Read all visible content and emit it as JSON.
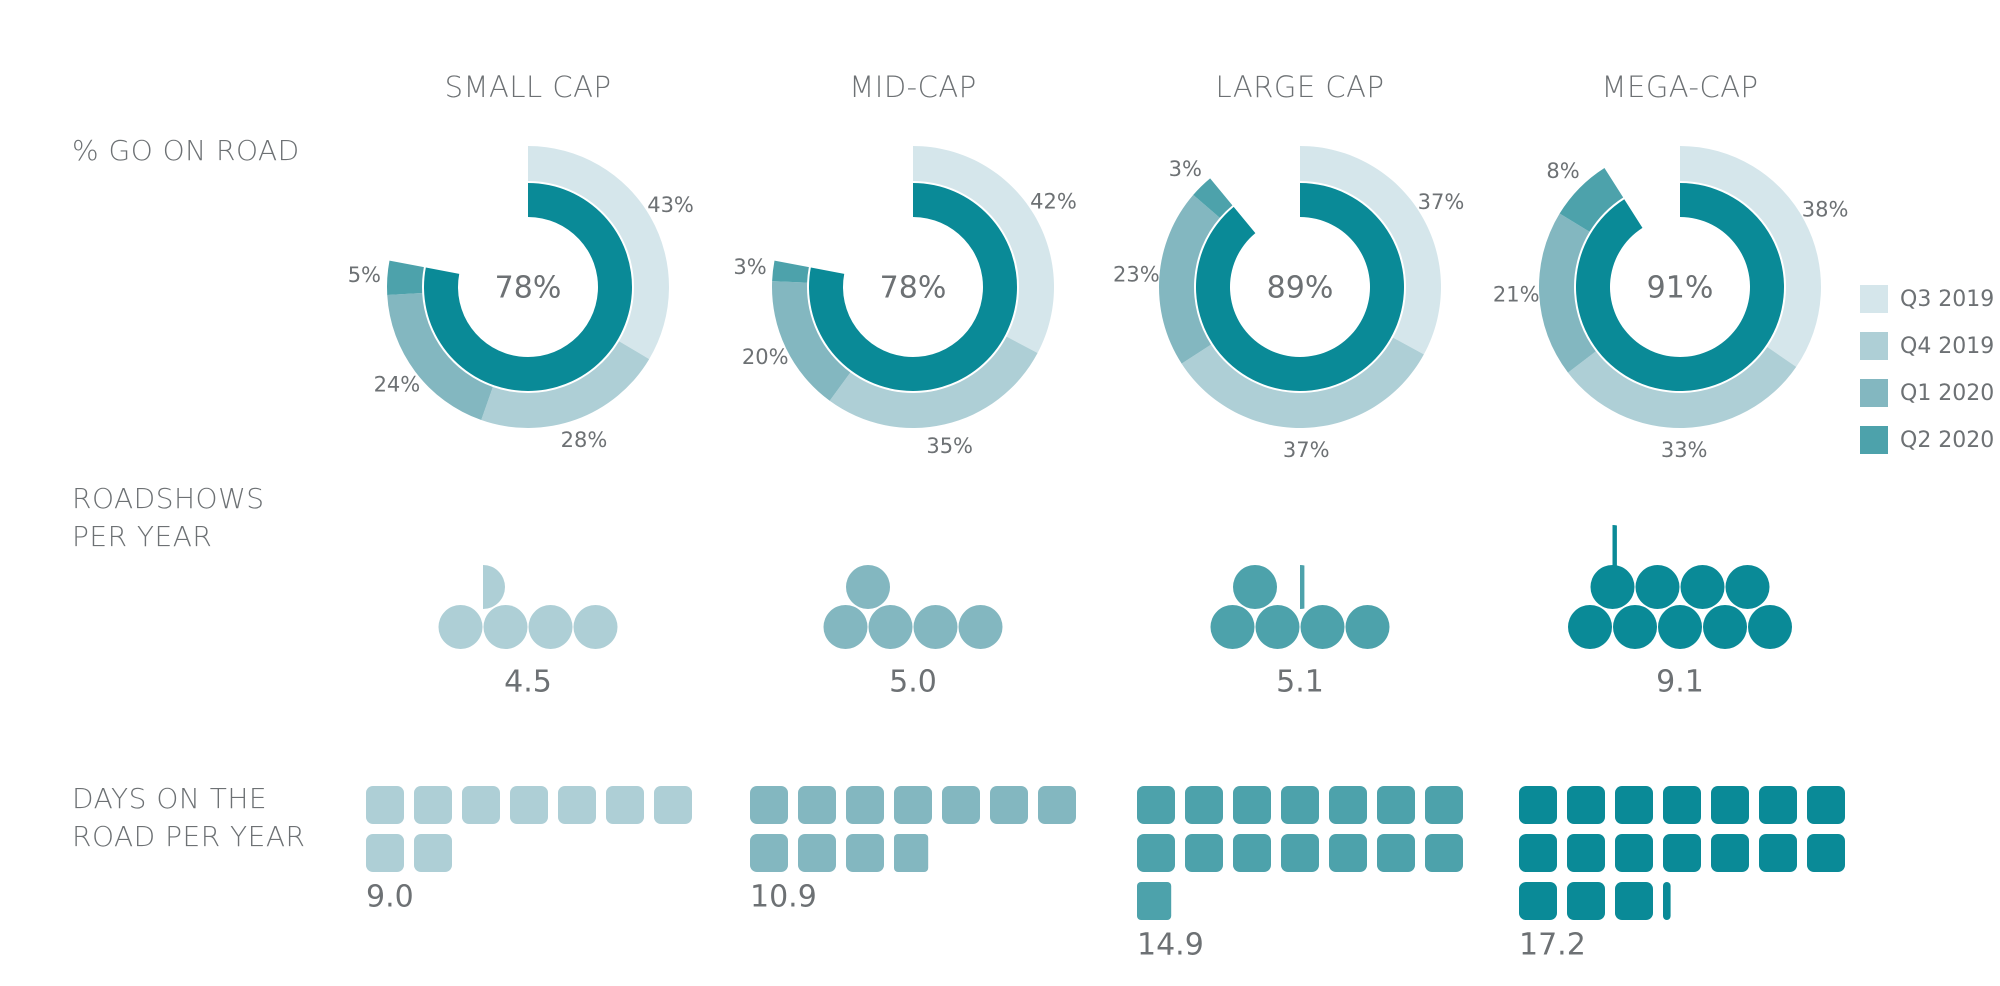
{
  "colors": {
    "q3_2019": "#d5e6eb",
    "q4_2019": "#aecfd6",
    "q1_2020": "#83b7c0",
    "q2_2020": "#4da2ab",
    "dark": "#0a8a97",
    "text": "#6d7174"
  },
  "row_labels": {
    "go_on_road": "% GO ON ROAD",
    "roadshows": "ROADSHOWS\nPER YEAR",
    "days": "DAYS ON THE\nROAD PER YEAR"
  },
  "legend": [
    {
      "label": "Q3 2019",
      "color": "#d5e6eb"
    },
    {
      "label": "Q4 2019",
      "color": "#aecfd6"
    },
    {
      "label": "Q1 2020",
      "color": "#83b7c0"
    },
    {
      "label": "Q2 2020",
      "color": "#4da2ab"
    }
  ],
  "chart_data": [
    {
      "type": "donut",
      "title": "% GO ON ROAD",
      "categories": [
        "SMALL CAP",
        "MID-CAP",
        "LARGE CAP",
        "MEGA-CAP"
      ],
      "total_values": [
        78,
        78,
        89,
        91
      ],
      "total_labels": [
        "78%",
        "78%",
        "89%",
        "91%"
      ],
      "series": [
        {
          "name": "Q3 2019",
          "values": [
            43,
            42,
            37,
            38
          ],
          "labels": [
            "43%",
            "42%",
            "37%",
            "38%"
          ]
        },
        {
          "name": "Q4 2019",
          "values": [
            28,
            35,
            37,
            33
          ],
          "labels": [
            "28%",
            "35%",
            "37%",
            "33%"
          ]
        },
        {
          "name": "Q1 2020",
          "values": [
            24,
            20,
            23,
            21
          ],
          "labels": [
            "24%",
            "20%",
            "23%",
            "21%"
          ]
        },
        {
          "name": "Q2 2020",
          "values": [
            5,
            3,
            3,
            8
          ],
          "labels": [
            "5%",
            "3%",
            "3%",
            "8%"
          ]
        }
      ]
    },
    {
      "type": "pictogram",
      "title": "ROADSHOWS PER YEAR",
      "categories": [
        "SMALL CAP",
        "MID-CAP",
        "LARGE CAP",
        "MEGA-CAP"
      ],
      "values": [
        4.5,
        5.0,
        5.1,
        9.1
      ],
      "labels": [
        "4.5",
        "5.0",
        "5.1",
        "9.1"
      ]
    },
    {
      "type": "pictogram",
      "title": "DAYS ON THE ROAD PER YEAR",
      "categories": [
        "SMALL CAP",
        "MID-CAP",
        "LARGE CAP",
        "MEGA-CAP"
      ],
      "values": [
        9.0,
        10.9,
        14.9,
        17.2
      ],
      "labels": [
        "9.0",
        "10.9",
        "14.9",
        "17.2"
      ]
    }
  ]
}
